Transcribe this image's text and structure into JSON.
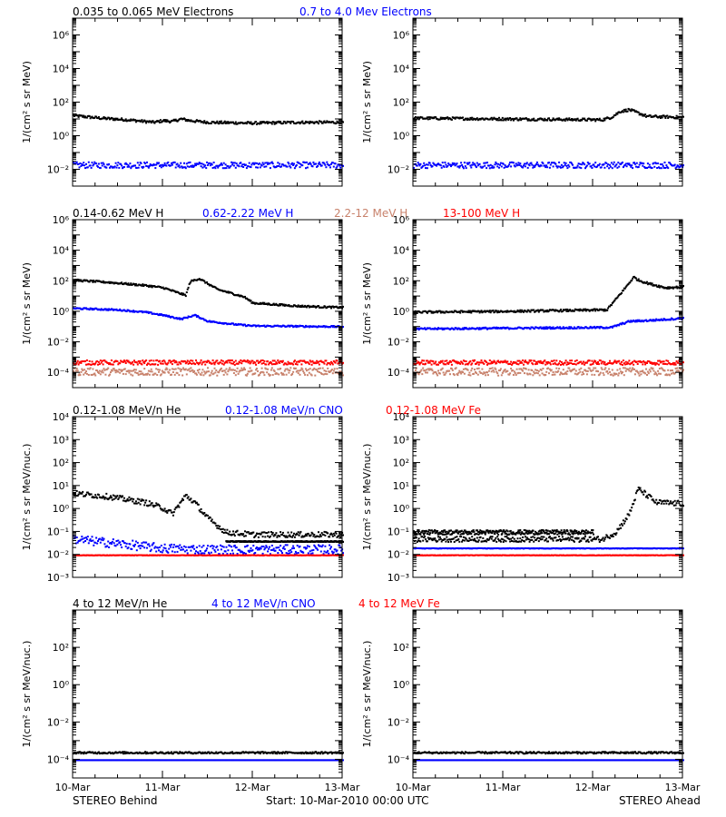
{
  "footer": {
    "left": "STEREO Behind",
    "center": "Start: 10-Mar-2010 00:00 UTC",
    "right": "STEREO Ahead"
  },
  "x_ticks": [
    "10-Mar",
    "11-Mar",
    "12-Mar",
    "13-Mar"
  ],
  "colors": {
    "black": "#000000",
    "blue": "#0000ff",
    "tan": "#c8826c",
    "red": "#ff0000"
  },
  "chart_data": [
    {
      "type": "scatter",
      "row": "electrons",
      "header": [
        {
          "text": "0.035 to 0.065 MeV Electrons",
          "color": "#000000"
        },
        {
          "text": "0.7 to 4.0 Mev Electrons",
          "color": "#0000ff"
        }
      ],
      "ylabel_html": "1/(cm² s sr MeV)",
      "yscale": "log",
      "ylim_exp": [
        -3,
        7
      ],
      "yticks_exp": [
        -2,
        0,
        2,
        4,
        6
      ],
      "panels": [
        {
          "spacecraft": "STEREO Behind",
          "series": [
            {
              "color": "#000000",
              "x_days": [
                0.0,
                0.3,
                0.6,
                0.9,
                1.0,
                1.1,
                1.2,
                1.3,
                1.5,
                2.0,
                2.5,
                3.0
              ],
              "y_log": [
                1.25,
                1.1,
                1.0,
                0.85,
                0.95,
                0.9,
                1.05,
                0.95,
                0.85,
                0.8,
                0.85,
                0.85
              ],
              "noise": 0.08
            },
            {
              "color": "#0000ff",
              "x_days": [
                0.0,
                3.0
              ],
              "y_log": [
                -1.7,
                -1.7
              ],
              "noise": 0.18
            }
          ]
        },
        {
          "spacecraft": "STEREO Ahead",
          "series": [
            {
              "color": "#000000",
              "x_days": [
                0.0,
                1.0,
                2.1,
                2.2,
                2.3,
                2.4,
                2.6,
                3.0
              ],
              "y_log": [
                1.1,
                1.05,
                1.0,
                1.15,
                1.5,
                1.6,
                1.2,
                1.15
              ],
              "noise": 0.08
            },
            {
              "color": "#0000ff",
              "x_days": [
                0.0,
                3.0
              ],
              "y_log": [
                -1.7,
                -1.7
              ],
              "noise": 0.18
            }
          ]
        }
      ]
    },
    {
      "type": "scatter",
      "row": "protons",
      "header": [
        {
          "text": "0.14-0.62 MeV H",
          "color": "#000000"
        },
        {
          "text": "0.62-2.22 MeV H",
          "color": "#0000ff"
        },
        {
          "text": "2.2-12 MeV H",
          "color": "#c8826c"
        },
        {
          "text": "13-100 MeV H",
          "color": "#ff0000"
        }
      ],
      "ylabel_html": "1/(cm² s sr MeV)",
      "yscale": "log",
      "ylim_exp": [
        -5,
        6
      ],
      "yticks_exp": [
        -4,
        -2,
        0,
        2,
        4,
        6
      ],
      "panels": [
        {
          "spacecraft": "STEREO Behind",
          "series": [
            {
              "color": "#000000",
              "x_days": [
                0.0,
                0.4,
                0.8,
                1.0,
                1.15,
                1.25,
                1.3,
                1.4,
                1.6,
                1.9,
                2.0,
                2.5,
                3.0
              ],
              "y_log": [
                2.1,
                1.95,
                1.75,
                1.6,
                1.3,
                1.1,
                2.0,
                2.2,
                1.5,
                1.0,
                0.6,
                0.4,
                0.3
              ],
              "noise": 0.06
            },
            {
              "color": "#0000ff",
              "x_days": [
                0.0,
                0.5,
                0.8,
                1.0,
                1.2,
                1.35,
                1.5,
                1.8,
                2.0,
                3.0
              ],
              "y_log": [
                0.25,
                0.15,
                0.0,
                -0.2,
                -0.45,
                -0.2,
                -0.6,
                -0.8,
                -0.9,
                -0.95
              ],
              "noise": 0.05
            },
            {
              "color": "#c8826c",
              "x_days": [
                0.0,
                3.0
              ],
              "y_log": [
                -3.9,
                -3.9
              ],
              "noise": 0.25
            },
            {
              "color": "#ff0000",
              "x_days": [
                0.0,
                3.0
              ],
              "y_log": [
                -3.3,
                -3.3
              ],
              "noise": 0.15
            }
          ]
        },
        {
          "spacecraft": "STEREO Ahead",
          "series": [
            {
              "color": "#000000",
              "x_days": [
                0.0,
                1.0,
                2.15,
                2.3,
                2.45,
                2.5,
                2.6,
                2.8,
                3.0
              ],
              "y_log": [
                0.0,
                0.05,
                0.15,
                1.2,
                2.3,
                2.1,
                1.9,
                1.6,
                1.65
              ],
              "noise": 0.07
            },
            {
              "color": "#0000ff",
              "x_days": [
                0.0,
                1.0,
                2.2,
                2.4,
                2.6,
                3.0
              ],
              "y_log": [
                -1.1,
                -1.05,
                -1.0,
                -0.6,
                -0.55,
                -0.4
              ],
              "noise": 0.06
            },
            {
              "color": "#c8826c",
              "x_days": [
                0.0,
                3.0
              ],
              "y_log": [
                -3.9,
                -3.9
              ],
              "noise": 0.25
            },
            {
              "color": "#ff0000",
              "x_days": [
                0.0,
                3.0
              ],
              "y_log": [
                -3.3,
                -3.3
              ],
              "noise": 0.15
            }
          ]
        }
      ]
    },
    {
      "type": "scatter",
      "row": "heavy_low",
      "header": [
        {
          "text": "0.12-1.08 MeV/n He",
          "color": "#000000"
        },
        {
          "text": "0.12-1.08 MeV/n CNO",
          "color": "#0000ff"
        },
        {
          "text": "0.12-1.08 MeV Fe",
          "color": "#ff0000"
        }
      ],
      "ylabel_html": "1/(cm² s sr MeV/nuc.)",
      "yscale": "log",
      "ylim_exp": [
        -3,
        4
      ],
      "yticks_exp": [
        -3,
        -2,
        -1,
        0,
        1,
        2,
        3,
        4
      ],
      "panels": [
        {
          "spacecraft": "STEREO Behind",
          "series": [
            {
              "color": "#000000",
              "x_days": [
                0.0,
                0.4,
                0.8,
                1.0,
                1.1,
                1.25,
                1.35,
                1.5,
                1.7,
                2.0,
                3.0
              ],
              "y_log": [
                0.7,
                0.55,
                0.3,
                0.05,
                -0.2,
                0.6,
                0.3,
                -0.4,
                -1.0,
                -1.1,
                -1.1
              ],
              "noise": 0.12
            },
            {
              "color": "#000000",
              "x_days": [
                1.7,
                3.0
              ],
              "y_log": [
                -1.4,
                -1.4
              ],
              "noise": 0.02
            },
            {
              "color": "#0000ff",
              "x_days": [
                0.0,
                0.5,
                1.0,
                1.5,
                3.0
              ],
              "y_log": [
                -1.3,
                -1.5,
                -1.7,
                -1.75,
                -1.75
              ],
              "noise": 0.2
            },
            {
              "color": "#ff0000",
              "x_days": [
                0.0,
                3.0
              ],
              "y_log": [
                -2.0,
                -2.0
              ],
              "noise": 0.01
            }
          ]
        },
        {
          "spacecraft": "STEREO Ahead",
          "series": [
            {
              "color": "#000000",
              "x_days": [
                0.0,
                2.0
              ],
              "y_log": [
                -1.0,
                -1.0
              ],
              "noise": 0.1
            },
            {
              "color": "#000000",
              "x_days": [
                0.0,
                2.1,
                2.25,
                2.4,
                2.5,
                2.7,
                3.0
              ],
              "y_log": [
                -1.3,
                -1.3,
                -1.0,
                -0.2,
                0.9,
                0.3,
                0.25
              ],
              "noise": 0.12
            },
            {
              "color": "#0000ff",
              "x_days": [
                0.0,
                3.0
              ],
              "y_log": [
                -1.7,
                -1.7
              ],
              "noise": 0.01
            },
            {
              "color": "#ff0000",
              "x_days": [
                0.0,
                3.0
              ],
              "y_log": [
                -2.0,
                -2.0
              ],
              "noise": 0.01
            }
          ]
        }
      ]
    },
    {
      "type": "scatter",
      "row": "heavy_high",
      "header": [
        {
          "text": "4 to 12 MeV/n He",
          "color": "#000000"
        },
        {
          "text": "4 to 12 MeV/n CNO",
          "color": "#0000ff"
        },
        {
          "text": "4 to 12 MeV Fe",
          "color": "#ff0000"
        }
      ],
      "ylabel_html": "1/(cm² s sr MeV/nuc.)",
      "yscale": "log",
      "ylim_exp": [
        -5,
        4
      ],
      "yticks_exp": [
        -4,
        -2,
        0,
        2
      ],
      "panels": [
        {
          "spacecraft": "STEREO Behind",
          "series": [
            {
              "color": "#0000ff",
              "x_days": [
                0.0,
                3.0
              ],
              "y_log": [
                -4.0,
                -4.0
              ],
              "noise": 0.0
            },
            {
              "color": "#000000",
              "x_days": [
                0.0,
                3.0
              ],
              "y_log": [
                -3.6,
                -3.6
              ],
              "noise": 0.05
            }
          ]
        },
        {
          "spacecraft": "STEREO Ahead",
          "series": [
            {
              "color": "#0000ff",
              "x_days": [
                0.0,
                3.0
              ],
              "y_log": [
                -4.0,
                -4.0
              ],
              "noise": 0.0
            },
            {
              "color": "#000000",
              "x_days": [
                0.0,
                3.0
              ],
              "y_log": [
                -3.6,
                -3.6
              ],
              "noise": 0.05
            }
          ]
        }
      ]
    }
  ]
}
